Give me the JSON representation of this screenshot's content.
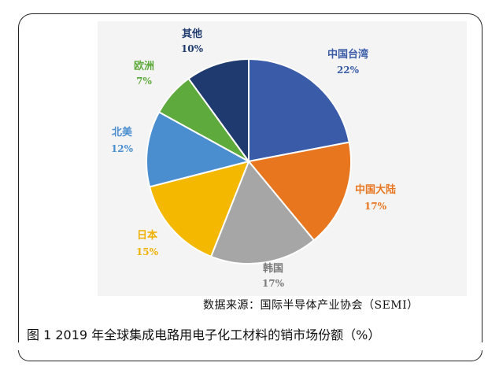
{
  "chart_data": {
    "type": "pie",
    "title": "",
    "slices": [
      {
        "label": "中国台湾",
        "value": 22,
        "value_label": "22%",
        "color": "#3a5ca8"
      },
      {
        "label": "中国大陆",
        "value": 17,
        "value_label": "17%",
        "color": "#e8761f"
      },
      {
        "label": "韩国",
        "value": 17,
        "value_label": "17%",
        "color": "#a6a6a6"
      },
      {
        "label": "日本",
        "value": 15,
        "value_label": "15%",
        "color": "#f5b800"
      },
      {
        "label": "北美",
        "value": 12,
        "value_label": "12%",
        "color": "#4a8ed0"
      },
      {
        "label": "欧洲",
        "value": 7,
        "value_label": "7%",
        "color": "#5faa3c"
      },
      {
        "label": "其他",
        "value": 10,
        "value_label": "10%",
        "color": "#1e3a6e"
      }
    ],
    "start_angle_deg": 0,
    "direction": "clockwise",
    "legend": "none"
  },
  "source": "数据来源：国际半导体产业协会（SEMI）",
  "caption": "图 1  2019 年全球集成电路用电子化工材料的销市场份额（%）"
}
